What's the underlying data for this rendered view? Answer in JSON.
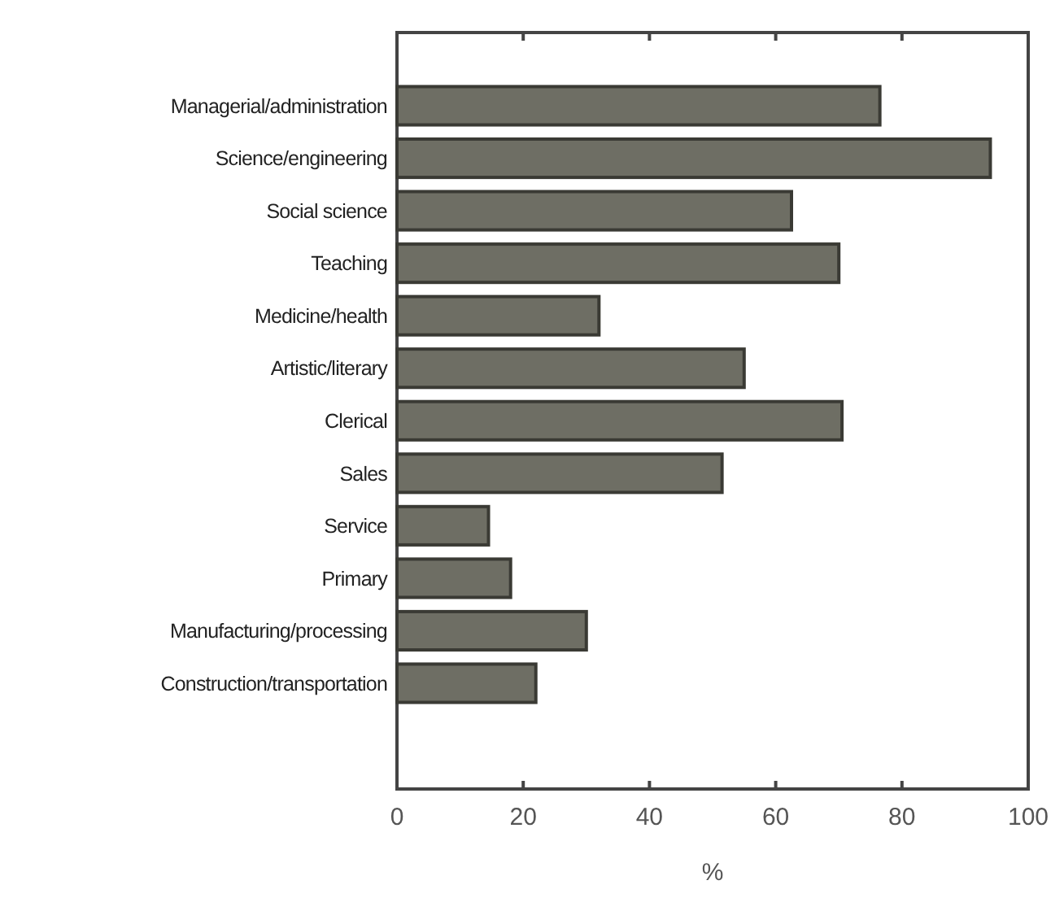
{
  "chart_data": {
    "type": "bar",
    "orientation": "horizontal",
    "xlabel": "%",
    "categories": [
      "Managerial/administration",
      "Science/engineering",
      "Social science",
      "Teaching",
      "Medicine/health",
      "Artistic/literary",
      "Clerical",
      "Sales",
      "Service",
      "Primary",
      "Manufacturing/processing",
      "Construction/transportation"
    ],
    "values": [
      76.5,
      94,
      62.5,
      70,
      32,
      55,
      70.5,
      51.5,
      14.5,
      18,
      30,
      22
    ],
    "color": "#6e6e64",
    "xlim": [
      0,
      100
    ],
    "xticks": [
      0,
      20,
      40,
      60,
      80,
      100
    ],
    "grid": false
  }
}
